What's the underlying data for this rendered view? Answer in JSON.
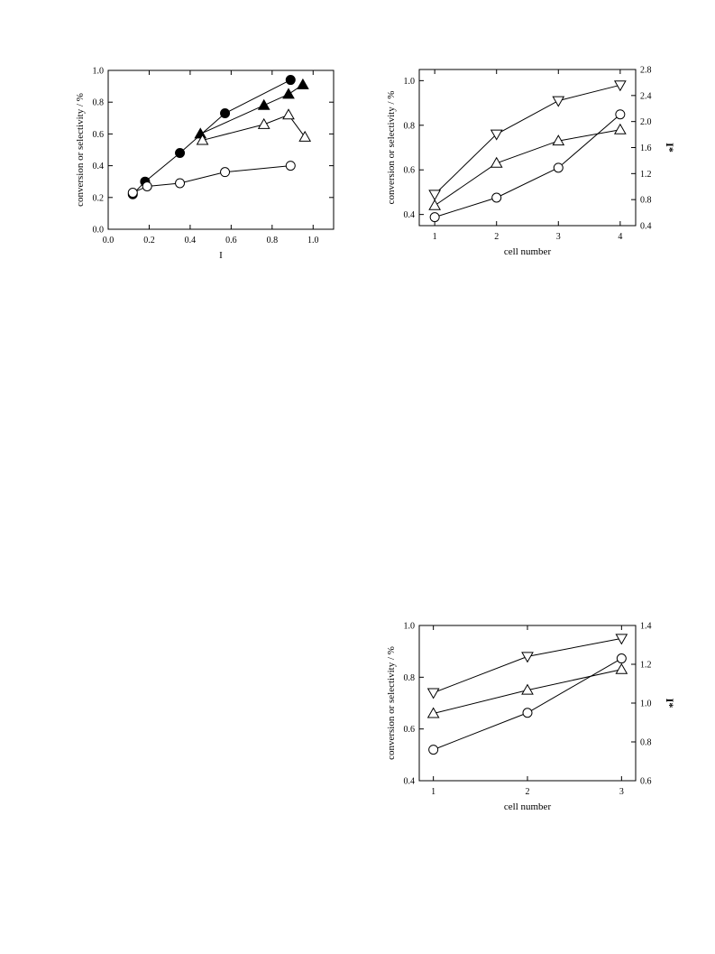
{
  "chart_data": [
    {
      "type": "line",
      "xlabel": "I*",
      "ylabel": "conversion or selectivity / %",
      "xlim": [
        0.0,
        1.1
      ],
      "ylim": [
        0.0,
        1.0
      ],
      "xticks": [
        "0.0",
        "0.2",
        "0.4",
        "0.6",
        "0.8",
        "1.0"
      ],
      "yticks": [
        "0.0",
        "0.2",
        "0.4",
        "0.6",
        "0.8",
        "1.0"
      ],
      "grid": false,
      "series": [
        {
          "marker": "filled-circle",
          "x": [
            0.12,
            0.18,
            0.35,
            0.57,
            0.89
          ],
          "y": [
            0.22,
            0.3,
            0.48,
            0.73,
            0.94
          ]
        },
        {
          "marker": "filled-triangle",
          "x": [
            0.45,
            0.76,
            0.88,
            0.95
          ],
          "y": [
            0.6,
            0.78,
            0.85,
            0.91
          ]
        },
        {
          "marker": "open-triangle",
          "x": [
            0.46,
            0.76,
            0.88,
            0.96
          ],
          "y": [
            0.56,
            0.66,
            0.72,
            0.58
          ]
        },
        {
          "marker": "open-circle",
          "x": [
            0.12,
            0.19,
            0.35,
            0.57,
            0.89
          ],
          "y": [
            0.23,
            0.27,
            0.29,
            0.36,
            0.4
          ]
        }
      ]
    },
    {
      "type": "line",
      "xlabel": "cell number",
      "ylabel": "conversion or selectivity / %",
      "y2label": "I*",
      "xlim": [
        0.75,
        4.25
      ],
      "ylim": [
        0.35,
        1.05
      ],
      "y2lim": [
        0.4,
        2.8
      ],
      "xticks": [
        "1",
        "2",
        "3",
        "4"
      ],
      "yticks": [
        "0.4",
        "0.6",
        "0.8",
        "1.0"
      ],
      "y2ticks": [
        "0.4",
        "0.8",
        "1.2",
        "1.6",
        "2.0",
        "2.4",
        "2.8"
      ],
      "grid": false,
      "series": [
        {
          "marker": "open-down-triangle",
          "x": [
            1,
            2,
            3,
            4
          ],
          "y": [
            0.49,
            0.76,
            0.91,
            0.98
          ]
        },
        {
          "marker": "open-triangle",
          "x": [
            1,
            2,
            3,
            4
          ],
          "y": [
            0.44,
            0.63,
            0.73,
            0.78
          ]
        },
        {
          "marker": "open-circle",
          "x": [
            1,
            2,
            3,
            4
          ],
          "y2": [
            0.53,
            0.83,
            1.29,
            2.11
          ]
        }
      ]
    },
    {
      "type": "line",
      "xlabel": "cell number",
      "ylabel": "conversion or selectivity / %",
      "y2label": "I*",
      "xlim": [
        0.85,
        3.15
      ],
      "ylim": [
        0.4,
        1.0
      ],
      "y2lim": [
        0.6,
        1.4
      ],
      "xticks": [
        "1",
        "2",
        "3"
      ],
      "yticks": [
        "0.4",
        "0.6",
        "0.8",
        "1.0"
      ],
      "y2ticks": [
        "0.6",
        "0.8",
        "1.0",
        "1.2",
        "1.4"
      ],
      "grid": false,
      "series": [
        {
          "marker": "open-down-triangle",
          "x": [
            1,
            2,
            3
          ],
          "y": [
            0.74,
            0.88,
            0.95
          ]
        },
        {
          "marker": "open-triangle",
          "x": [
            1,
            2,
            3
          ],
          "y": [
            0.66,
            0.75,
            0.83
          ]
        },
        {
          "marker": "open-circle",
          "x": [
            1,
            2,
            3
          ],
          "y2": [
            0.76,
            0.95,
            1.23
          ]
        }
      ]
    }
  ]
}
